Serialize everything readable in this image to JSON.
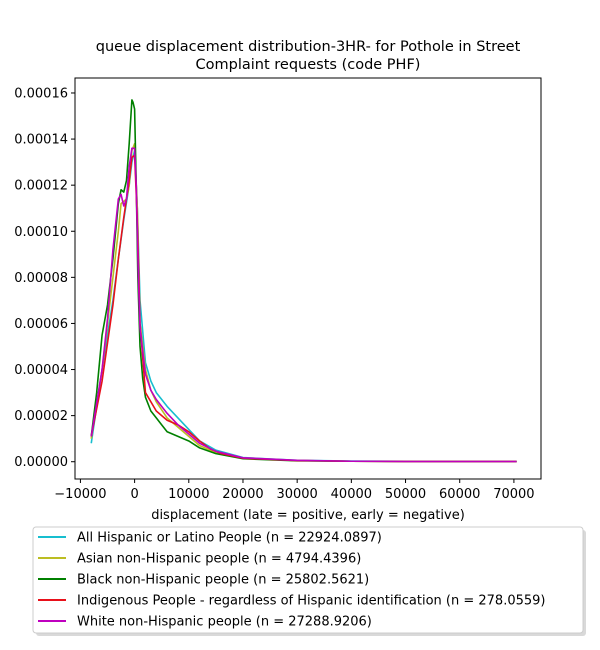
{
  "chart_data": {
    "type": "line",
    "title": "queue displacement distribution-3HR-  for Pothole in Street\nComplaint  requests (code PHF)",
    "xlabel": "displacement (late = positive, early = negative)",
    "ylabel": "",
    "xlim": [
      -11000,
      75000
    ],
    "ylim": [
      -7.5e-06,
      0.0001665
    ],
    "xticks": [
      -10000,
      0,
      10000,
      20000,
      30000,
      40000,
      50000,
      60000,
      70000
    ],
    "xtick_labels": [
      "−10000",
      "0",
      "10000",
      "20000",
      "30000",
      "40000",
      "50000",
      "60000",
      "70000"
    ],
    "yticks": [
      0,
      2e-05,
      4e-05,
      6e-05,
      8e-05,
      0.0001,
      0.00012,
      0.00014,
      0.00016
    ],
    "ytick_labels": [
      "0.00000",
      "0.00002",
      "0.00004",
      "0.00006",
      "0.00008",
      "0.00010",
      "0.00012",
      "0.00014",
      "0.00016"
    ],
    "grid": false,
    "legend_position": "bottom",
    "series": [
      {
        "name": "All Hispanic or Latino People (n = 22924.0897)",
        "color": "#17becf",
        "x": [
          -8000,
          -6000,
          -4000,
          -3000,
          -2000,
          -1000,
          -500,
          0,
          500,
          1000,
          2000,
          3000,
          4000,
          6000,
          8000,
          10000,
          12000,
          15000,
          20000,
          30000,
          40000,
          50000,
          60000,
          70500
        ],
        "y": [
          8e-06,
          4e-05,
          7e-05,
          8.8e-05,
          0.000105,
          0.00012,
          0.00013,
          0.000135,
          0.00011,
          7e-05,
          4.3e-05,
          3.5e-05,
          3e-05,
          2.4e-05,
          1.9e-05,
          1.4e-05,
          9e-06,
          5e-06,
          1.8e-06,
          6e-07,
          3e-07,
          2e-07,
          1e-07,
          1e-07
        ]
      },
      {
        "name": "Asian non-Hispanic people (n = 4794.4396)",
        "color": "#bcbd22",
        "x": [
          -8000,
          -6000,
          -4000,
          -3000,
          -2500,
          -2000,
          -1500,
          -1000,
          -500,
          0,
          500,
          1000,
          2000,
          3000,
          4000,
          6000,
          8000,
          10000,
          12000,
          15000,
          20000,
          30000,
          40000,
          50000,
          60000,
          70500
        ],
        "y": [
          1e-05,
          4e-05,
          8e-05,
          0.0001,
          0.000112,
          0.000113,
          0.000114,
          0.00012,
          0.000135,
          0.000138,
          0.00011,
          6e-05,
          4e-05,
          3.1e-05,
          2.6e-05,
          1.9e-05,
          1.5e-05,
          1.1e-05,
          7e-06,
          4e-06,
          1.5e-06,
          5e-07,
          2e-07,
          1e-07,
          1e-07,
          1e-07
        ]
      },
      {
        "name": "Black non-Hispanic people (n = 25802.5621)",
        "color": "#008000",
        "x": [
          -8000,
          -7000,
          -6000,
          -5000,
          -4000,
          -3000,
          -2500,
          -2000,
          -1500,
          -1000,
          -500,
          -300,
          0,
          300,
          600,
          1000,
          1500,
          2000,
          3000,
          4000,
          5000,
          6000,
          8000,
          10000,
          12000,
          15000,
          20000,
          30000,
          40000,
          50000,
          60000,
          70500
        ],
        "y": [
          1.1e-05,
          3e-05,
          5.5e-05,
          6.8e-05,
          8.8e-05,
          0.000112,
          0.000118,
          0.000117,
          0.000122,
          0.000138,
          0.000157,
          0.000156,
          0.000153,
          0.00012,
          8e-05,
          5e-05,
          3.6e-05,
          2.8e-05,
          2.2e-05,
          1.9e-05,
          1.6e-05,
          1.3e-05,
          1.1e-05,
          9e-06,
          6e-06,
          3.5e-06,
          1.3e-06,
          4e-07,
          2e-07,
          1e-07,
          1e-07,
          1e-07
        ]
      },
      {
        "name": "Indigenous People - regardless of Hispanic identification (n = 278.0559)",
        "color": "#e8101a",
        "x": [
          -8000,
          -6000,
          -4000,
          -3000,
          -2000,
          -1000,
          -500,
          0,
          500,
          1000,
          2000,
          4000,
          6000,
          8000,
          10000,
          12000,
          14000,
          16000,
          20000,
          30000,
          40000,
          50000,
          60000,
          70500
        ],
        "y": [
          1.1e-05,
          3.5e-05,
          6.8e-05,
          8.8e-05,
          0.000106,
          0.000122,
          0.000132,
          0.000133,
          0.000105,
          6e-05,
          3e-05,
          2.2e-05,
          1.8e-05,
          1.6e-05,
          1.3e-05,
          9e-06,
          5.5e-06,
          3.5e-06,
          1.5e-06,
          5e-07,
          2e-07,
          1e-07,
          1e-07,
          1e-07
        ]
      },
      {
        "name": "White non-Hispanic people (n = 27288.9206)",
        "color": "#bf00bf",
        "x": [
          -8000,
          -6000,
          -5000,
          -4000,
          -3000,
          -2500,
          -2000,
          -1500,
          -1000,
          -500,
          0,
          300,
          700,
          1000,
          2000,
          3000,
          4000,
          6000,
          8000,
          10000,
          12000,
          15000,
          20000,
          30000,
          40000,
          50000,
          60000,
          70500
        ],
        "y": [
          1.1e-05,
          4e-05,
          6.2e-05,
          9.2e-05,
          0.000114,
          0.000116,
          0.000111,
          0.000114,
          0.000128,
          0.000136,
          0.000136,
          0.00012,
          8e-05,
          5.8e-05,
          3.8e-05,
          3.1e-05,
          2.7e-05,
          2.1e-05,
          1.6e-05,
          1.2e-05,
          8e-06,
          4.5e-06,
          1.7e-06,
          6e-07,
          2e-07,
          1e-07,
          1e-07,
          1e-07
        ]
      }
    ]
  }
}
